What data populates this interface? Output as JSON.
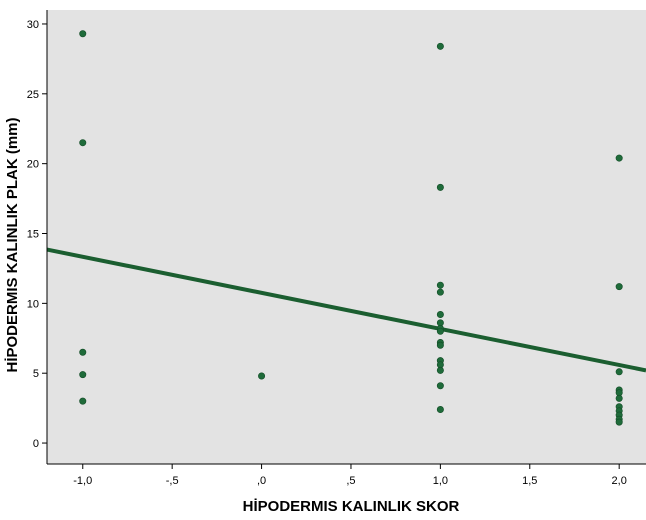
{
  "chart_data": {
    "type": "scatter",
    "title": "",
    "xlabel": "HİPODERMIS KALINLIK SKOR",
    "ylabel": "HİPODERMIS KALINLIK PLAK (mm)",
    "xlim": [
      -1.2,
      2.15
    ],
    "ylim": [
      -1.5,
      31
    ],
    "x_ticks": [
      -1.0,
      -0.5,
      0.0,
      0.5,
      1.0,
      1.5,
      2.0
    ],
    "x_tick_labels": [
      "-1,0",
      "-,5",
      ",0",
      ",5",
      "1,0",
      "1,5",
      "2,0"
    ],
    "y_ticks": [
      0,
      5,
      10,
      15,
      20,
      25,
      30
    ],
    "y_tick_labels": [
      "0",
      "5",
      "10",
      "15",
      "20",
      "25",
      "30"
    ],
    "grid": false,
    "points": [
      {
        "x": -1,
        "y": 29.3
      },
      {
        "x": -1,
        "y": 21.5
      },
      {
        "x": -1,
        "y": 6.5
      },
      {
        "x": -1,
        "y": 4.9
      },
      {
        "x": -1,
        "y": 3.0
      },
      {
        "x": 0,
        "y": 4.8
      },
      {
        "x": 1,
        "y": 28.4
      },
      {
        "x": 1,
        "y": 18.3
      },
      {
        "x": 1,
        "y": 11.3
      },
      {
        "x": 1,
        "y": 10.8
      },
      {
        "x": 1,
        "y": 9.2
      },
      {
        "x": 1,
        "y": 8.6
      },
      {
        "x": 1,
        "y": 8.2
      },
      {
        "x": 1,
        "y": 8.0
      },
      {
        "x": 1,
        "y": 7.2
      },
      {
        "x": 1,
        "y": 7.0
      },
      {
        "x": 1,
        "y": 5.9
      },
      {
        "x": 1,
        "y": 5.6
      },
      {
        "x": 1,
        "y": 5.2
      },
      {
        "x": 1,
        "y": 4.1
      },
      {
        "x": 1,
        "y": 2.4
      },
      {
        "x": 2,
        "y": 20.4
      },
      {
        "x": 2,
        "y": 11.2
      },
      {
        "x": 2,
        "y": 5.1
      },
      {
        "x": 2,
        "y": 3.8
      },
      {
        "x": 2,
        "y": 3.6
      },
      {
        "x": 2,
        "y": 3.2
      },
      {
        "x": 2,
        "y": 2.6
      },
      {
        "x": 2,
        "y": 2.3
      },
      {
        "x": 2,
        "y": 2.0
      },
      {
        "x": 2,
        "y": 1.7
      },
      {
        "x": 2,
        "y": 1.5
      }
    ],
    "fit_line": {
      "x": [
        -1.2,
        2.15
      ],
      "y": [
        13.85,
        5.2
      ]
    },
    "colors": {
      "plot_background": "#e3e3e3",
      "marker": "#1f6b3a",
      "fit_line": "#1b5e30",
      "axis": "#000000"
    }
  }
}
